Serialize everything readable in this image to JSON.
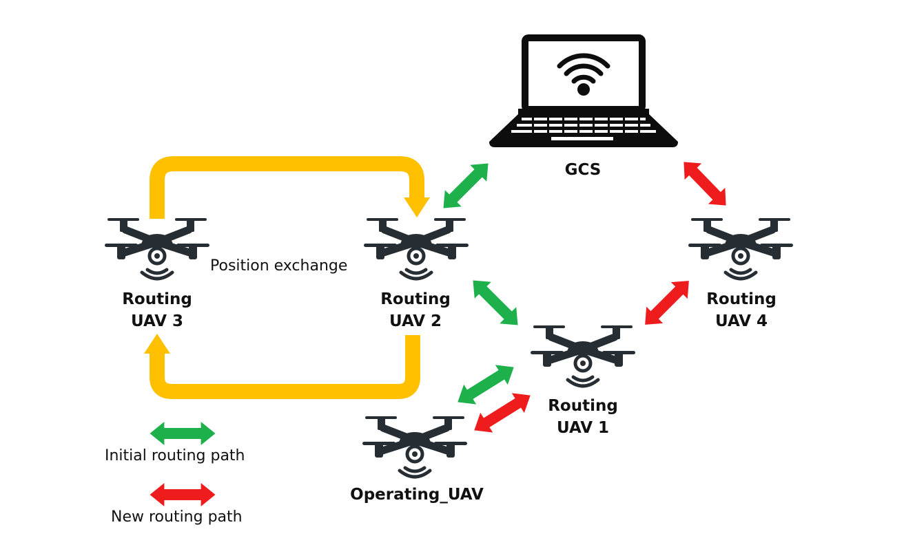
{
  "nodes": {
    "gcs": {
      "label": "GCS"
    },
    "uav3": {
      "line1": "Routing",
      "line2": "UAV 3"
    },
    "uav2": {
      "line1": "Routing",
      "line2": "UAV 2"
    },
    "uav4": {
      "line1": "Routing",
      "line2": "UAV 4"
    },
    "uav1": {
      "line1": "Routing",
      "line2": "UAV 1"
    },
    "operating": {
      "label": "Operating_UAV"
    }
  },
  "edge_labels": {
    "position_exchange": "Position exchange"
  },
  "legend": {
    "initial": {
      "label": "Initial routing path",
      "color": "#1db04b"
    },
    "new": {
      "label": "New routing path",
      "color": "#ee1c1c"
    }
  },
  "colors": {
    "exchange_arrow": "#ffc000",
    "icon": "#262d33"
  },
  "icons": {
    "gcs": "laptop-wifi-icon",
    "uav": "quadcopter-drone-icon"
  }
}
